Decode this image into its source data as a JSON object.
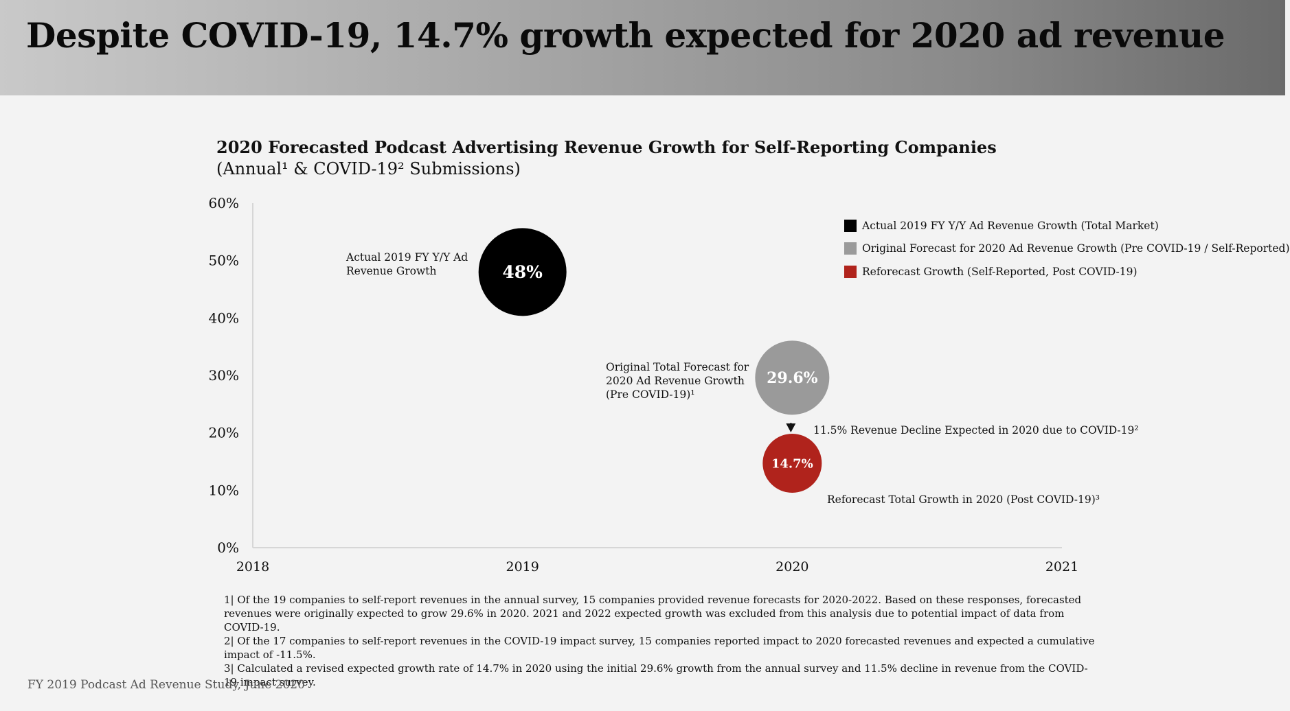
{
  "header": {
    "title": "Despite COVID-19, 14.7% growth expected for 2020 ad revenue"
  },
  "chart_data": {
    "type": "scatter",
    "title": "2020 Forecasted Podcast Advertising Revenue Growth for Self-Reporting Companies",
    "subtitle": "(Annual¹ & COVID-19² Submissions)",
    "xlabel": "",
    "ylabel": "",
    "xlim": [
      2018,
      2021
    ],
    "ylim": [
      0,
      60
    ],
    "x_ticks": [
      "2018",
      "2019",
      "2020",
      "2021"
    ],
    "y_ticks": [
      "0%",
      "10%",
      "20%",
      "30%",
      "40%",
      "50%",
      "60%"
    ],
    "grid": false,
    "legend_position": "top-right",
    "series": [
      {
        "name": "Actual 2019 FY Y/Y Ad Revenue Growth (Total Market)",
        "color": "#000000",
        "points": [
          {
            "x": 2019,
            "y": 48,
            "label": "48%",
            "annotation": [
              "Actual 2019 FY Y/Y Ad",
              "Revenue Growth"
            ]
          }
        ]
      },
      {
        "name": "Original Forecast for 2020 Ad Revenue Growth (Pre COVID-19 / Self-Reported)",
        "color": "#9a9a9a",
        "points": [
          {
            "x": 2020,
            "y": 29.6,
            "label": "29.6%",
            "annotation": [
              "Original Total Forecast for",
              "2020 Ad Revenue Growth",
              "(Pre COVID-19)¹"
            ]
          }
        ]
      },
      {
        "name": "Reforecast Growth (Self-Reported, Post COVID-19)",
        "color": "#b0231c",
        "points": [
          {
            "x": 2020,
            "y": 14.7,
            "label": "14.7%",
            "annotation": [
              "Reforecast Total Growth in 2020 (Post COVID-19)³"
            ]
          }
        ]
      }
    ],
    "arrow_annotation": "11.5% Revenue Decline Expected in 2020 due to COVID-19²"
  },
  "footnotes": [
    "1| Of the 19 companies to self-report revenues in the annual survey, 15 companies provided revenue forecasts for 2020-2022. Based on these responses,  forecasted revenues were originally expected to grow 29.6% in 2020. 2021 and 2022 expected growth was excluded from this analysis due to potential impact of data from COVID-19.",
    "2| Of the 17 companies to self-report revenues in the COVID-19 impact survey, 15 companies reported impact to 2020 forecasted revenues and expected a cumulative impact of -11.5%.",
    "3| Calculated a revised expected growth rate of 14.7% in 2020 using the initial 29.6% growth from the annual survey and 11.5% decline in revenue from the COVID-19 impact survey."
  ],
  "source": "FY 2019 Podcast Ad Revenue Study, June 2020"
}
